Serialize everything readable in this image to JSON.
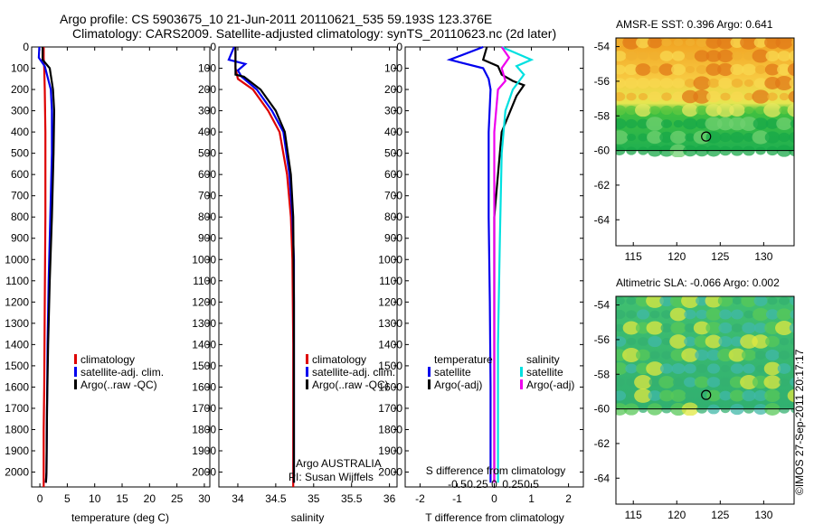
{
  "title_line1": "Argo profile: CS 5903675_10 21-Jun-2011 20110621_535 59.193S 123.376E",
  "title_line2": "Climatology: CARS2009. Satellite-adjusted climatology: synTS_20110623.nc (2d later)",
  "colors": {
    "climatology": "#dd0000",
    "satellite": "#0000ee",
    "argo": "#000000",
    "sat_s": "#00e0e0",
    "argo_s": "#ee00ee"
  },
  "chart_data": [
    {
      "type": "line",
      "name": "temperature-panel",
      "xlabel": "temperature (deg C)",
      "ylabel": "",
      "xlim": [
        -1.5,
        31
      ],
      "ylim": [
        2070,
        0
      ],
      "xticks": [
        0,
        5,
        10,
        15,
        20,
        25,
        30
      ],
      "yticks": [
        0,
        100,
        200,
        300,
        400,
        500,
        600,
        700,
        800,
        900,
        1000,
        1100,
        1200,
        1300,
        1400,
        1500,
        1600,
        1700,
        1800,
        1900,
        2000
      ],
      "legend": [
        "climatology",
        "satellite-adj. clim.",
        "Argo(..raw -QC)"
      ],
      "series": [
        {
          "name": "climatology",
          "x": [
            0.7,
            0.7,
            0.8,
            0.9,
            1.0,
            1.0,
            0.9,
            0.8,
            0.7,
            0.7,
            0.7
          ],
          "y": [
            0,
            50,
            100,
            200,
            400,
            800,
            1200,
            1600,
            1800,
            2000,
            2070
          ]
        },
        {
          "name": "satellite-adj. clim.",
          "x": [
            -0.1,
            -0.2,
            0.9,
            2.0,
            2.2,
            2.2,
            1.9,
            1.6,
            1.4,
            1.3,
            1.2,
            1.1
          ],
          "y": [
            0,
            50,
            90,
            200,
            300,
            500,
            800,
            1100,
            1400,
            1700,
            2000,
            2050
          ]
        },
        {
          "name": "Argo(..raw -QC)",
          "x": [
            0.5,
            0.5,
            1.8,
            2.4,
            2.6,
            2.5,
            2.2,
            1.8,
            1.5,
            1.3,
            1.2,
            1.1
          ],
          "y": [
            0,
            60,
            100,
            200,
            300,
            500,
            800,
            1100,
            1400,
            1700,
            2000,
            2050
          ]
        }
      ]
    },
    {
      "type": "line",
      "name": "salinity-panel",
      "xlabel": "salinity",
      "ylabel": "",
      "xlim": [
        33.75,
        36.1
      ],
      "ylim": [
        2070,
        0
      ],
      "xticks": [
        34,
        34.5,
        35,
        35.5,
        36
      ],
      "yticks": [
        0,
        100,
        200,
        300,
        400,
        500,
        600,
        700,
        800,
        900,
        1000,
        1100,
        1200,
        1300,
        1400,
        1500,
        1600,
        1700,
        1800,
        1900,
        2000
      ],
      "legend": [
        "climatology",
        "satellite-adj. clim.",
        "Argo(..raw -QC)"
      ],
      "series": [
        {
          "name": "climatology",
          "x": [
            33.97,
            33.97,
            34.0,
            34.2,
            34.4,
            34.55,
            34.65,
            34.7,
            34.72,
            34.73,
            34.73,
            34.73
          ],
          "y": [
            0,
            100,
            150,
            200,
            300,
            400,
            600,
            800,
            1000,
            1400,
            1800,
            2070
          ]
        },
        {
          "name": "satellite-adj. clim.",
          "x": [
            33.95,
            33.88,
            34.1,
            34.0,
            34.05,
            34.25,
            34.45,
            34.6,
            34.68,
            34.72,
            34.74,
            34.74,
            34.74
          ],
          "y": [
            0,
            60,
            80,
            110,
            140,
            200,
            300,
            400,
            600,
            800,
            1000,
            1500,
            2050
          ]
        },
        {
          "name": "Argo(..raw -QC)",
          "x": [
            33.97,
            33.97,
            34.08,
            34.3,
            34.5,
            34.62,
            34.7,
            34.73,
            34.74,
            34.74
          ],
          "y": [
            0,
            130,
            140,
            200,
            300,
            400,
            600,
            800,
            1200,
            2050
          ]
        }
      ],
      "annotation": [
        "Argo AUSTRALIA",
        "PI: Susan Wijffels"
      ]
    },
    {
      "type": "line",
      "name": "difference-panel",
      "xlabel": "T difference from climatology",
      "xlabel_top": "S difference from climatology",
      "xlim": [
        -2.4,
        2.4
      ],
      "ylim": [
        2070,
        0
      ],
      "xticks": [
        -2,
        -1,
        0,
        1,
        2
      ],
      "xticks_s": [
        -0.5,
        -0.25,
        0,
        0.25,
        0.5
      ],
      "yticks": [
        0,
        100,
        200,
        300,
        400,
        500,
        600,
        700,
        800,
        900,
        1000,
        1100,
        1200,
        1300,
        1400,
        1500,
        1600,
        1700,
        1800,
        1900,
        2000
      ],
      "legend_t_title": "temperature",
      "legend_s_title": "salinity",
      "legend": [
        "satellite",
        "Argo(-adj)",
        "satellite",
        "Argo(-adj)"
      ],
      "series": [
        {
          "name": "temperature satellite",
          "x": [
            -0.3,
            -1.2,
            -0.3,
            -0.15,
            -0.1,
            -0.15,
            -0.15,
            -0.12,
            -0.1,
            -0.1
          ],
          "y": [
            0,
            60,
            100,
            150,
            200,
            400,
            800,
            1200,
            1600,
            2050
          ]
        },
        {
          "name": "temperature Argo(-adj)",
          "x": [
            -0.2,
            -0.3,
            0.1,
            0.2,
            0.5,
            0.8,
            0.6,
            0.2,
            0.0,
            0.0
          ],
          "y": [
            0,
            60,
            90,
            130,
            160,
            180,
            230,
            400,
            800,
            2050
          ]
        },
        {
          "name": "salinity satellite",
          "x": [
            0.2,
            1.0,
            0.6,
            0.8,
            0.5,
            0.3,
            0.2,
            0.15,
            0.1,
            0.1
          ],
          "y": [
            0,
            60,
            90,
            130,
            200,
            300,
            500,
            900,
            1400,
            2050
          ]
        },
        {
          "name": "salinity Argo(-adj)",
          "x": [
            0.2,
            0.4,
            0.2,
            0.3,
            0.1,
            0.0,
            0.0
          ],
          "y": [
            0,
            50,
            100,
            160,
            200,
            400,
            2050
          ]
        }
      ]
    },
    {
      "type": "heatmap",
      "name": "amsr-sst-map",
      "title": "AMSR-E SST: 0.396 Argo: 0.641",
      "xlim": [
        113,
        133.5
      ],
      "ylim": [
        -65.5,
        -53.5
      ],
      "xticks": [
        115,
        120,
        125,
        130
      ],
      "yticks": [
        -54,
        -56,
        -58,
        -60,
        -62,
        -64
      ],
      "data_extent_lat": [
        -60,
        -53.5
      ],
      "argo_position": [
        123.376,
        -59.193
      ]
    },
    {
      "type": "heatmap",
      "name": "altimetric-sla-map",
      "title": "Altimetric SLA: -0.066 Argo: 0.002",
      "xlim": [
        113,
        133.5
      ],
      "ylim": [
        -65.5,
        -53.5
      ],
      "xticks": [
        115,
        120,
        125,
        130
      ],
      "yticks": [
        -54,
        -56,
        -58,
        -60,
        -62,
        -64
      ],
      "data_extent_lat": [
        -60,
        -53.5
      ],
      "argo_position": [
        123.376,
        -59.193
      ]
    }
  ],
  "credit": "©IMOS 27-Sep-2011 20:17:17"
}
